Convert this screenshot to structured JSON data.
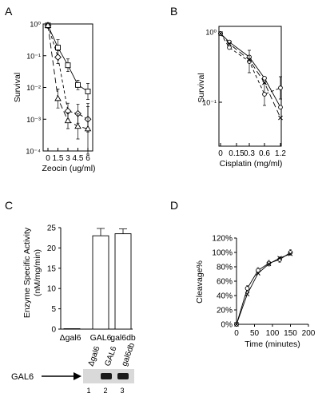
{
  "chart_data": [
    {
      "type": "line",
      "panel": "A",
      "ylabel": "Survival",
      "xlabel": "Zeocin (ug/ml)",
      "y_scale": "log",
      "ylim": [
        0.0001,
        1
      ],
      "xlim": [
        0,
        6
      ],
      "x_ticks": [
        "0",
        "1.5",
        "3",
        "4.5",
        "6"
      ],
      "y_ticks": [
        "10⁰",
        "10⁻¹",
        "10⁻²",
        "10⁻³",
        "10⁻⁴"
      ],
      "series": [
        {
          "marker": "square",
          "dash": "solid",
          "x": [
            0,
            1.5,
            3,
            4.5,
            6
          ],
          "y": [
            0.9,
            0.18,
            0.05,
            0.012,
            0.0075
          ]
        },
        {
          "marker": "diamond",
          "dash": "dashed",
          "x": [
            0,
            1.5,
            3,
            4.5,
            6
          ],
          "y": [
            0.9,
            0.09,
            0.0018,
            0.0015,
            0.001
          ]
        },
        {
          "marker": "triangle",
          "dash": "long-dash",
          "x": [
            0,
            1.5,
            3,
            4.5,
            6
          ],
          "y": [
            0.9,
            0.0045,
            0.0009,
            0.0006,
            0.0005
          ]
        }
      ]
    },
    {
      "type": "line",
      "panel": "B",
      "ylabel": "Survival",
      "xlabel": "Cisplatin (mg/ml)",
      "y_scale": "log",
      "x_ticks": [
        "0",
        "0.15",
        "0.3",
        "0.6",
        "1.2"
      ],
      "y_ticks": [
        "10⁰",
        "10⁻¹"
      ],
      "series": [
        {
          "marker": "circle",
          "dash": "solid",
          "x": [
            "0",
            "0.075",
            "0.15",
            "0.3",
            "1.2"
          ],
          "y": [
            0.95,
            0.72,
            0.44,
            0.22,
            0.085
          ]
        },
        {
          "marker": "circle",
          "dash": "dashed",
          "x": [
            "0",
            "0.075",
            "0.15",
            "0.3",
            "1.2"
          ],
          "y": [
            0.95,
            0.6,
            0.38,
            0.13,
            0.16
          ]
        },
        {
          "marker": "x",
          "dash": "long-dash",
          "x": [
            "0",
            "0.075",
            "0.15",
            "0.3",
            "1.2"
          ],
          "y": [
            0.95,
            0.68,
            0.4,
            0.19,
            0.06
          ]
        }
      ]
    },
    {
      "type": "bar",
      "panel": "C",
      "ylabel": "Enzyme Specific Activity (nM/mg/min)",
      "ylabel_lines": [
        "Enzyme Specific Activity",
        "(nM/mg/min)"
      ],
      "categories": [
        "Δgal6",
        "GAL6",
        "gal6db"
      ],
      "values": [
        0.1,
        23,
        23.5
      ],
      "errors": [
        0,
        1.8,
        1.2
      ],
      "ylim": [
        0,
        25
      ],
      "y_ticks": [
        "0",
        "5",
        "10",
        "15",
        "20",
        "25"
      ]
    },
    {
      "type": "line",
      "panel": "D",
      "ylabel": "Cleavage%",
      "xlabel": "Time (minutes)",
      "xlim": [
        0,
        200
      ],
      "ylim": [
        0,
        120
      ],
      "x_ticks": [
        "0",
        "50",
        "100",
        "150",
        "200"
      ],
      "y_ticks": [
        "0%",
        "20%",
        "40%",
        "60%",
        "80%",
        "100%",
        "120%"
      ],
      "series": [
        {
          "marker": "circle",
          "x": [
            0,
            30,
            60,
            90,
            120,
            150
          ],
          "y": [
            0,
            50,
            75,
            85,
            90,
            100
          ]
        },
        {
          "marker": "x",
          "x": [
            0,
            30,
            60,
            90,
            120,
            150
          ],
          "y": [
            0,
            42,
            71,
            84,
            92,
            98
          ]
        }
      ]
    }
  ],
  "panel_labels": [
    "A",
    "B",
    "C",
    "D"
  ],
  "gel": {
    "label": "GAL6",
    "lanes": [
      "Δgal6",
      "GAL6",
      "gal6db"
    ],
    "lane_numbers": [
      "1",
      "2",
      "3"
    ]
  }
}
